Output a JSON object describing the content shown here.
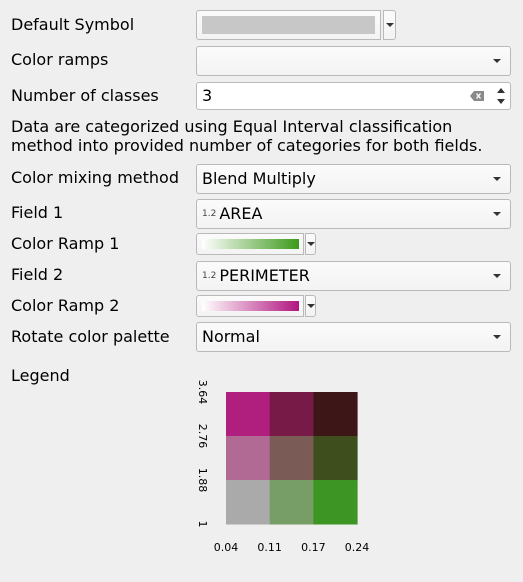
{
  "form": {
    "default_symbol": {
      "label": "Default Symbol",
      "symbol_color": "#c7c7c7"
    },
    "color_ramps": {
      "label": "Color ramps",
      "value": ""
    },
    "number_of_classes": {
      "label": "Number of classes",
      "value": "3"
    },
    "description": "Data are categorized using Equal Interval classification method into provided number of categories for both fields.",
    "color_mixing_method": {
      "label": "Color mixing method",
      "value": "Blend Multiply"
    },
    "field_1": {
      "label": "Field 1",
      "type_icon": "1.2",
      "value": "AREA"
    },
    "color_ramp_1": {
      "label": "Color Ramp 1",
      "from_color": "#ffffff",
      "to_color": "#3d9a1c"
    },
    "field_2": {
      "label": "Field 2",
      "type_icon": "1.2",
      "value": "PERIMETER"
    },
    "color_ramp_2": {
      "label": "Color Ramp 2",
      "from_color": "#ffffff",
      "to_color": "#b0157f"
    },
    "rotate_color_palette": {
      "label": "Rotate color palette",
      "value": "Normal"
    },
    "legend_label": "Legend"
  },
  "legend": {
    "y_ticks": [
      "3.64",
      "2.76",
      "1.88",
      "1"
    ],
    "x_ticks": [
      "0.04",
      "0.11",
      "0.17",
      "0.24"
    ],
    "grid": [
      [
        "#b01f7d",
        "#771a47",
        "#3d1718"
      ],
      [
        "#b16a94",
        "#7a5b55",
        "#3e4f1d"
      ],
      [
        "#aaaaaa",
        "#779e67",
        "#3d9524"
      ]
    ]
  }
}
